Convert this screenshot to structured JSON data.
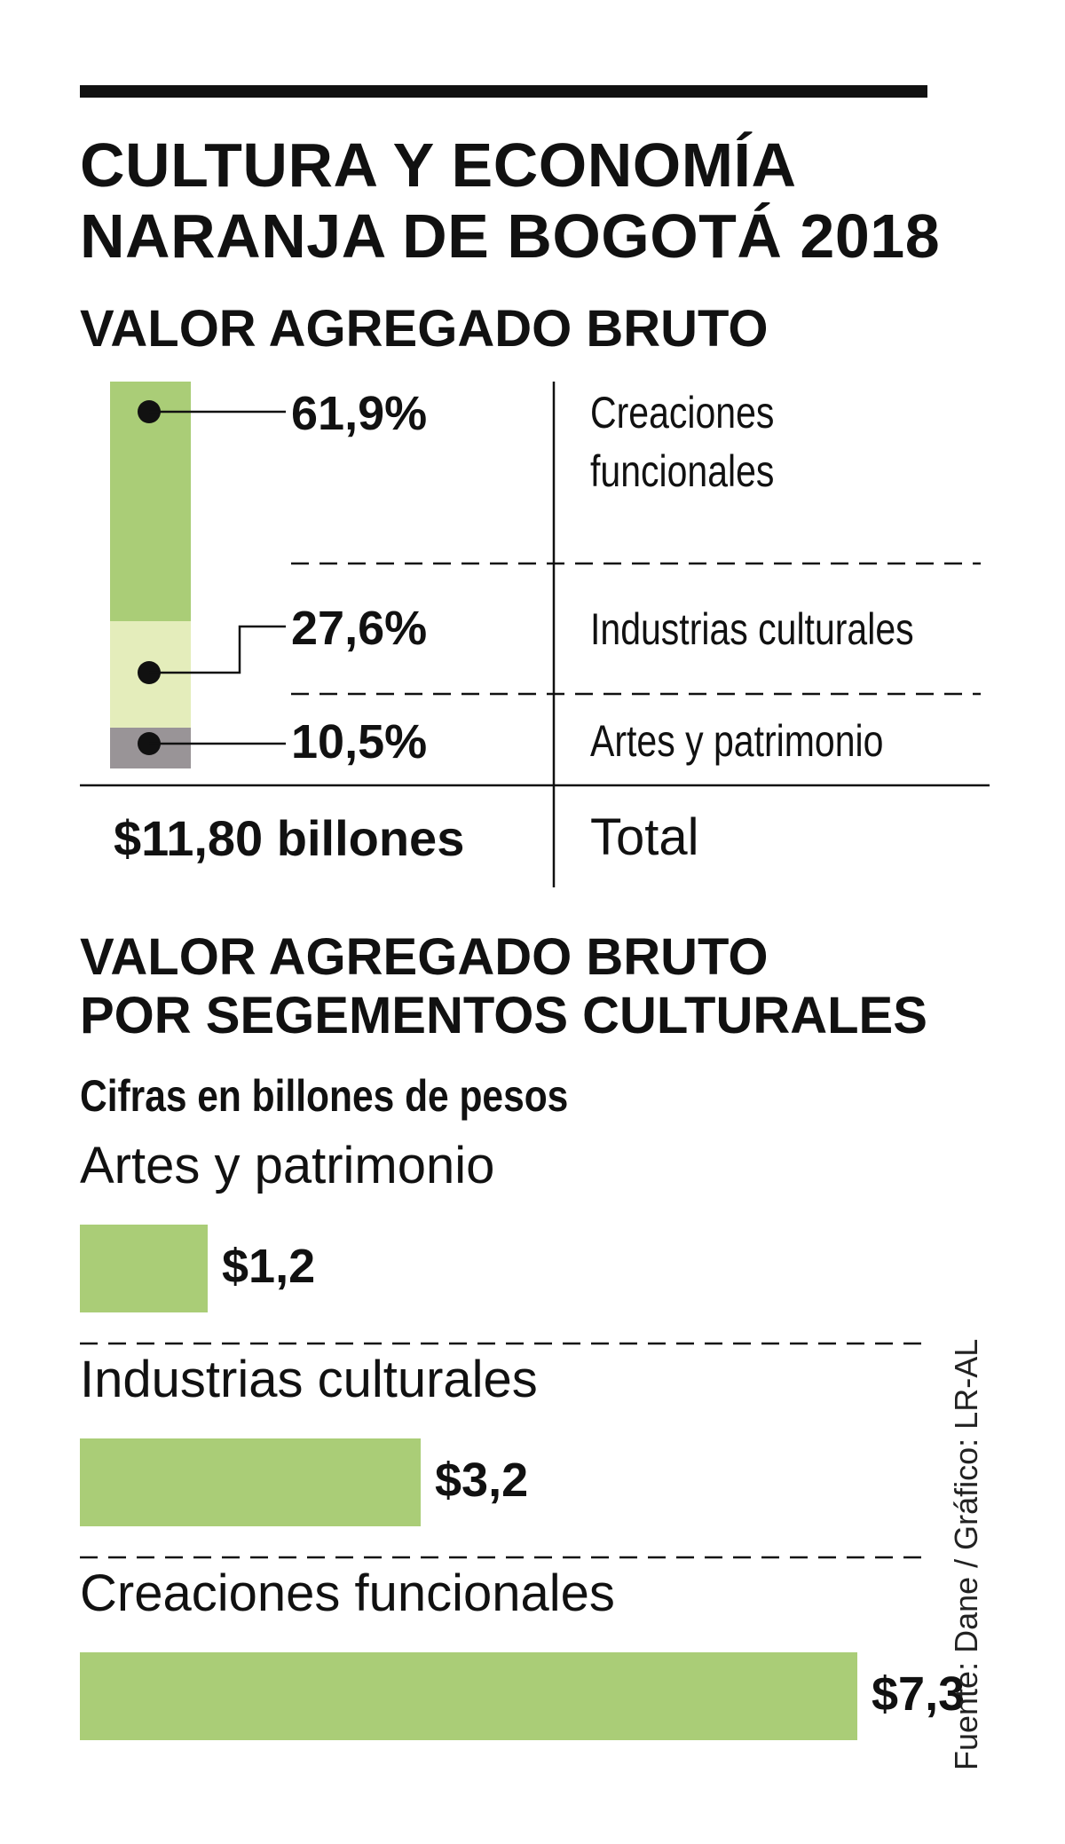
{
  "header": {
    "title_line1": "CULTURA Y ECONOMÍA",
    "title_line2": "NARANJA DE BOGOTÁ 2018"
  },
  "section1": {
    "title": "VALOR AGREGADO BRUTO",
    "items": [
      {
        "label": "Creaciones funcionales",
        "label_line1": "Creaciones",
        "label_line2": "funcionales",
        "pct_label": "61,9%",
        "pct": 61.9,
        "color": "#aacd77"
      },
      {
        "label": "Industrias culturales",
        "pct_label": "27,6%",
        "pct": 27.6,
        "color": "#e4edbb"
      },
      {
        "label": "Artes y patrimonio",
        "pct_label": "10,5%",
        "pct": 10.5,
        "color": "#999497"
      }
    ],
    "total_value": "$11,80 billones",
    "total_label": "Total"
  },
  "section2": {
    "title_line1": "VALOR AGREGADO BRUTO",
    "title_line2": "POR SEGEMENTOS CULTURALES",
    "units": "Cifras en billones de pesos"
  },
  "chart_data": {
    "type": "bar",
    "orientation": "horizontal",
    "categories": [
      "Artes y patrimonio",
      "Industrias culturales",
      "Creaciones funcionales"
    ],
    "values": [
      1.2,
      3.2,
      7.3
    ],
    "value_labels": [
      "$1,2",
      "$3,2",
      "$7,3"
    ],
    "bar_color": "#aacd77"
  },
  "source": "Fuente: Dane / Gráfico: LR-AL"
}
